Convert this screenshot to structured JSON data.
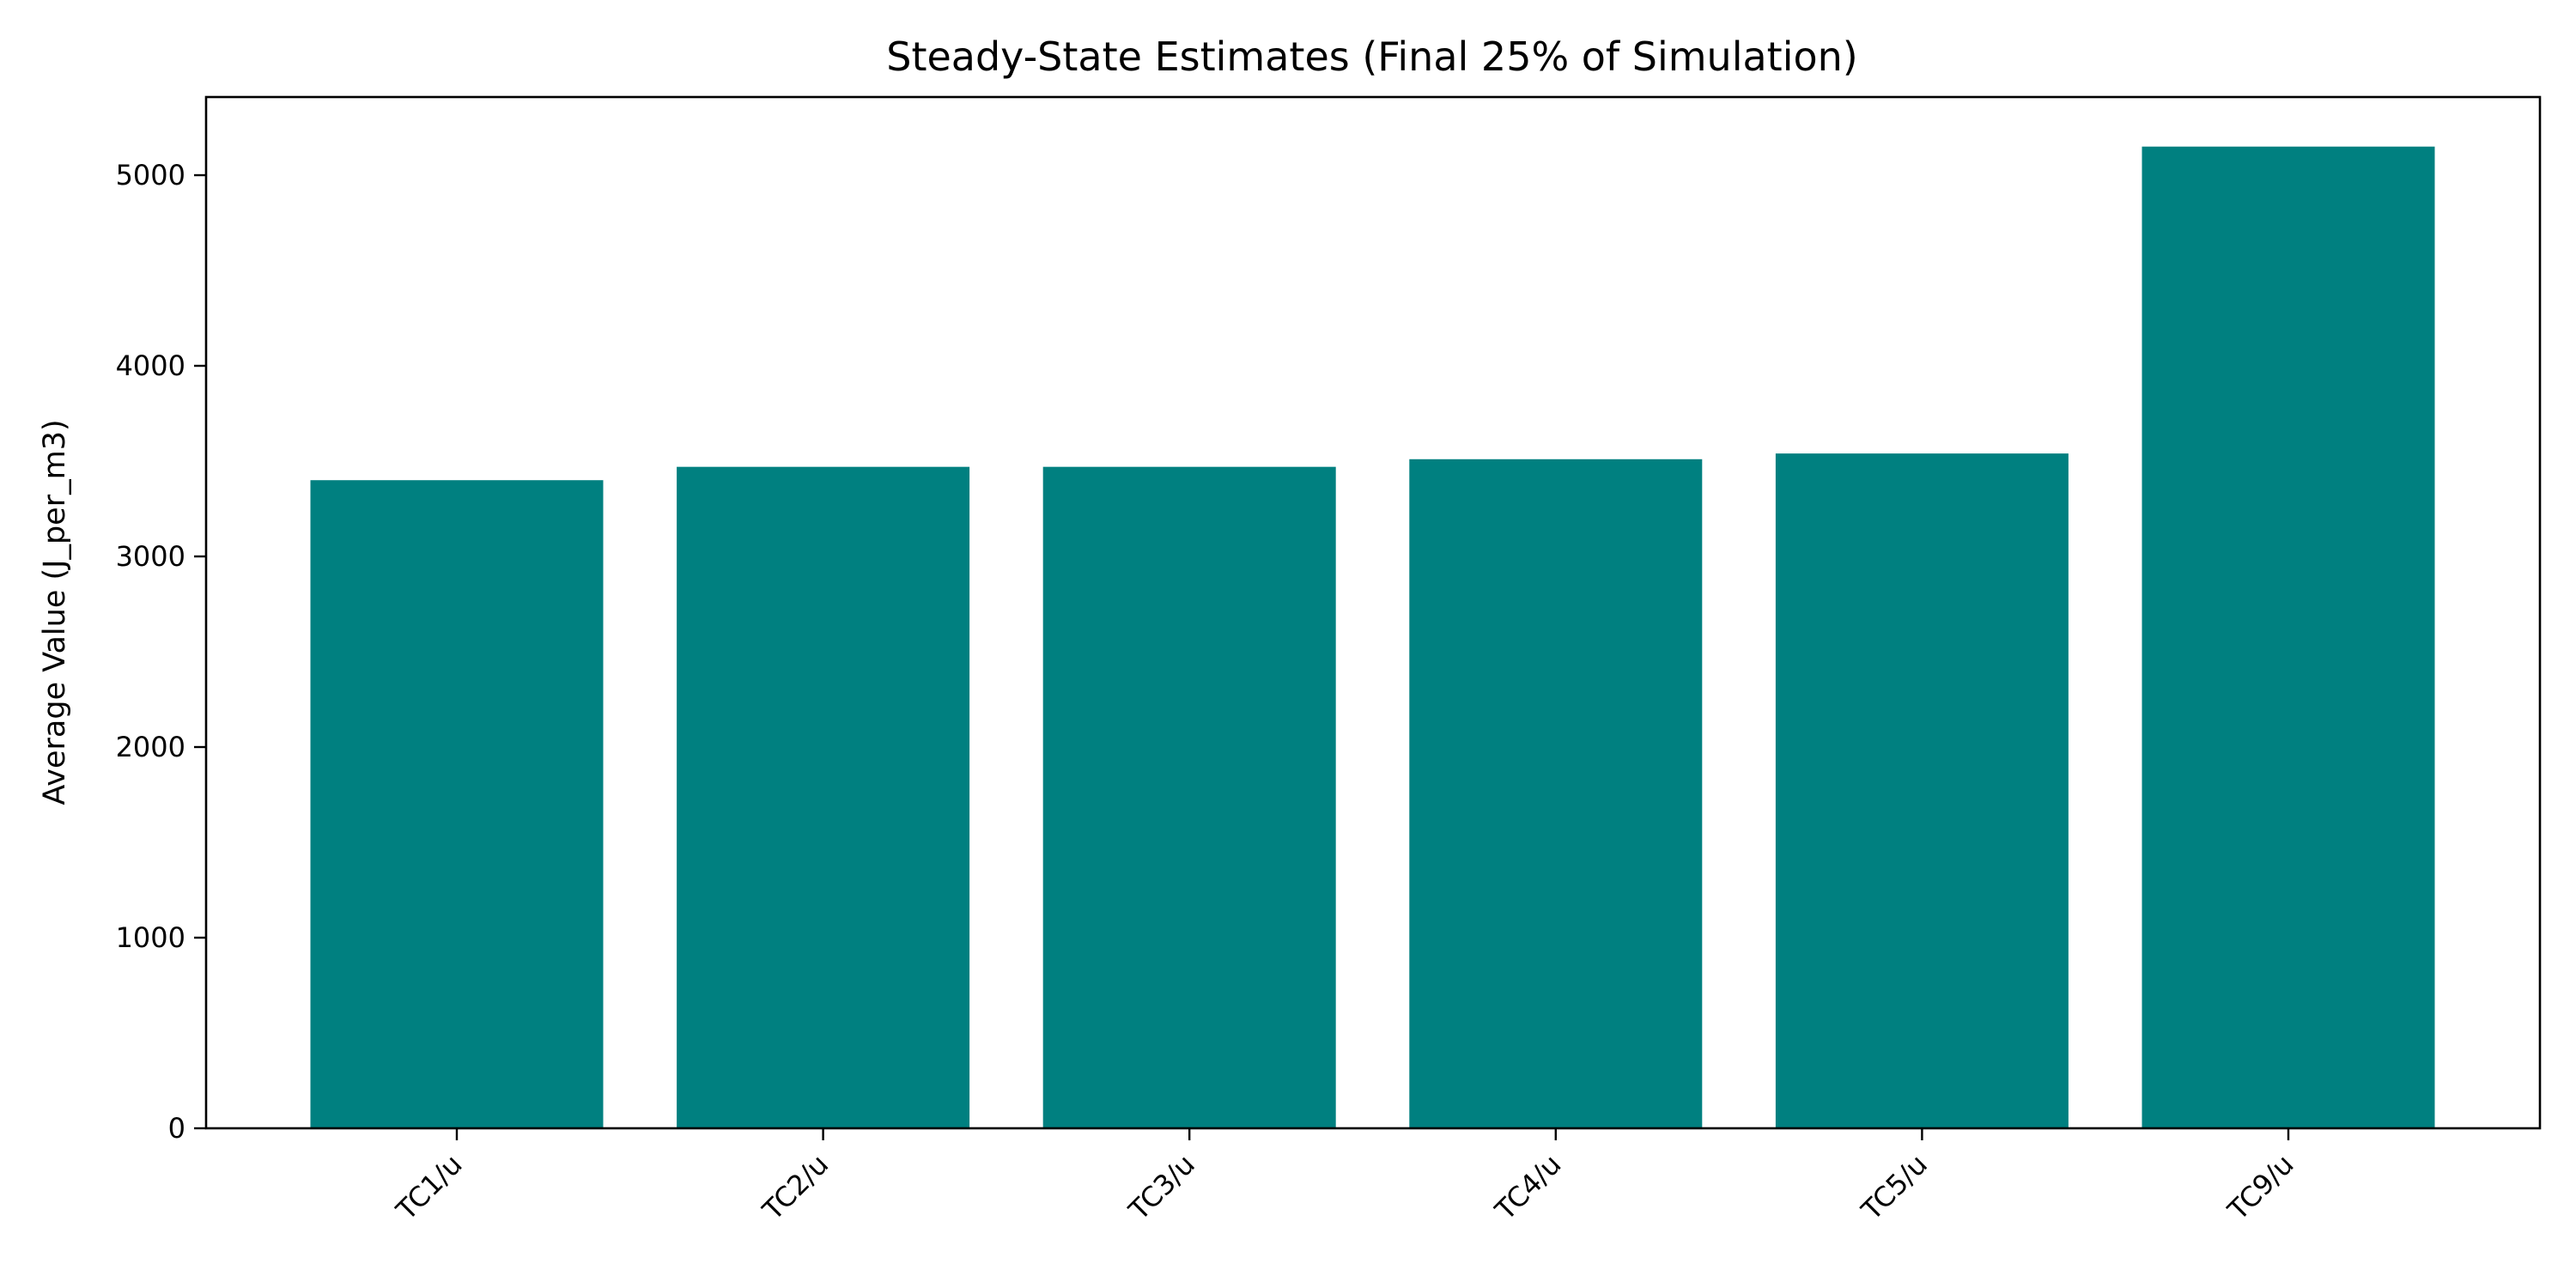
{
  "chart_data": {
    "type": "bar",
    "title": "Steady-State Estimates (Final 25% of Simulation)",
    "xlabel": "",
    "ylabel": "Average Value (J_per_m3)",
    "categories": [
      "TC1/u",
      "TC2/u",
      "TC3/u",
      "TC4/u",
      "TC5/u",
      "TC9/u"
    ],
    "values": [
      3400,
      3470,
      3470,
      3510,
      3540,
      5150
    ],
    "ylim": [
      0,
      5410
    ],
    "yticks": [
      "0",
      "1000",
      "2000",
      "3000",
      "4000",
      "5000"
    ],
    "grid": false,
    "legend": "none",
    "bar_color": "#008080"
  }
}
